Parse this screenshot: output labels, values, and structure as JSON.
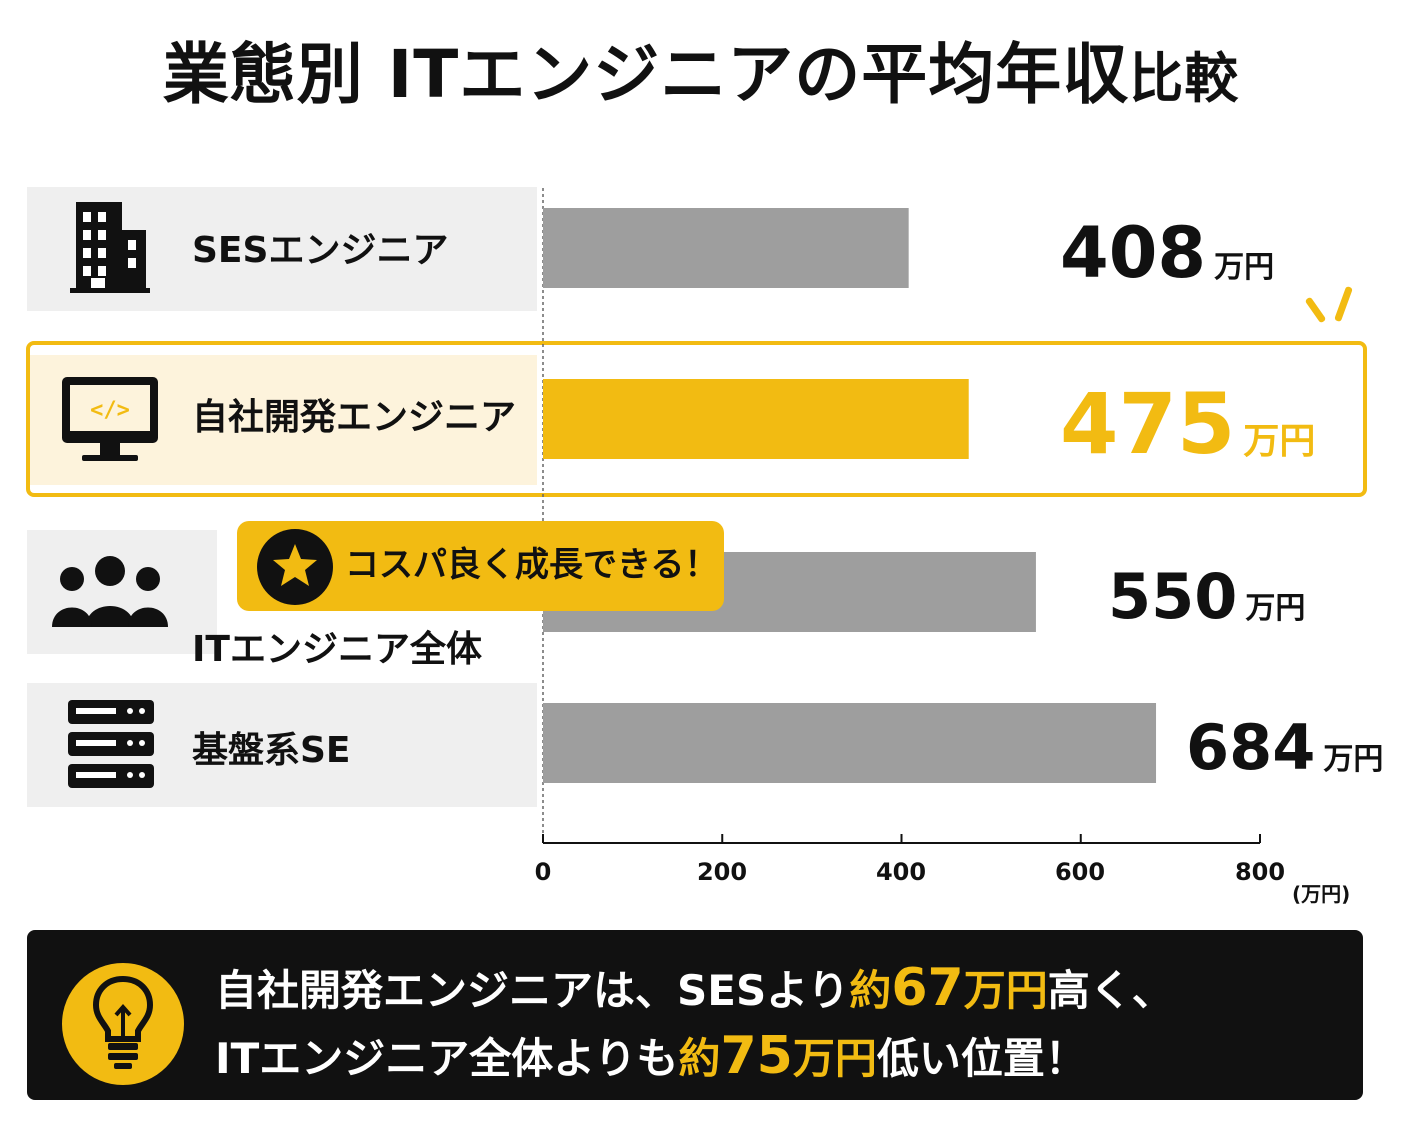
{
  "title": {
    "main": "業態別 ITエンジニアの平均年収",
    "tail": "比較"
  },
  "chart_data": {
    "type": "bar",
    "orientation": "horizontal",
    "categories": [
      "SESエンジニア",
      "自社開発エンジニア",
      "ITエンジニア全体",
      "基盤系SE"
    ],
    "values": [
      408,
      475,
      550,
      684
    ],
    "value_unit": "万円",
    "highlight_index": 1,
    "xlim": [
      0,
      800
    ],
    "x_ticks": [
      "0",
      "200",
      "400",
      "600",
      "800"
    ],
    "x_unit_label": "(万円)",
    "grid": false
  },
  "rows": [
    {
      "label": "SESエンジニア",
      "value": "408",
      "unit": "万円",
      "icon": "building-icon"
    },
    {
      "label": "自社開発エンジニア",
      "value": "475",
      "unit": "万円",
      "icon": "monitor-code-icon"
    },
    {
      "label": "ITエンジニア全体",
      "value": "550",
      "unit": "万円",
      "icon": "people-icon"
    },
    {
      "label": "基盤系SE",
      "value": "684",
      "unit": "万円",
      "icon": "server-icon"
    }
  ],
  "callout": {
    "text": "コスパ良く成長できる！",
    "icon": "star-icon"
  },
  "summary": {
    "icon": "lightbulb-icon",
    "line1_a": "自社開発エンジニアは、SESより",
    "line1_accent_small": "約",
    "line1_accent_big": "67",
    "line1_accent_unit": "万円",
    "line1_b": "高く、",
    "line2_a": "ITエンジニア全体よりも",
    "line2_accent_small": "約",
    "line2_accent_big": "75",
    "line2_accent_unit": "万円",
    "line2_b": "低い位置！"
  },
  "colors": {
    "accent": "#f2bb12",
    "bar": "#9e9e9e",
    "text": "#111111",
    "row_bg": "#efefef",
    "row_bg_highlight": "#fdf3dc"
  }
}
